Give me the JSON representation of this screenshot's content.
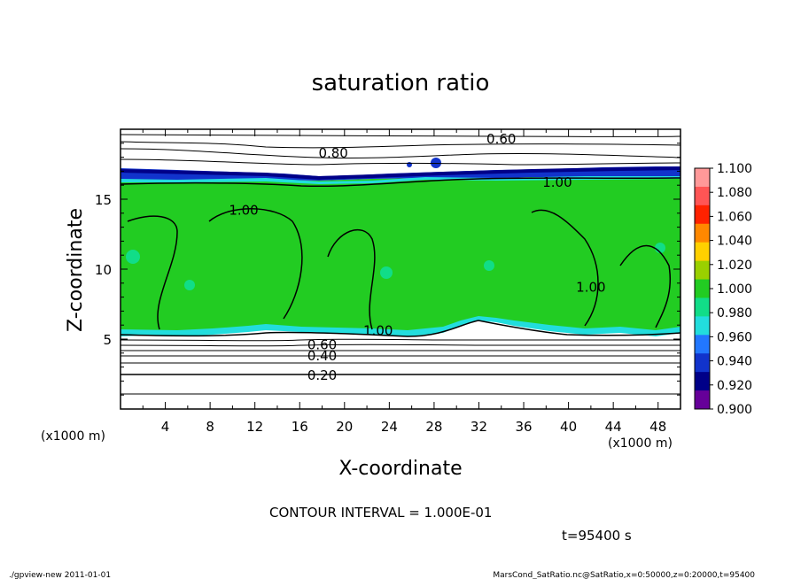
{
  "chart_data": {
    "type": "heatmap",
    "title": "saturation ratio",
    "xlabel": "X-coordinate",
    "ylabel": "Z-coordinate",
    "x_unit": "(x1000 m)",
    "y_unit": "(x1000 m)",
    "xlim": [
      0,
      50
    ],
    "ylim": [
      0,
      20
    ],
    "x_ticks": [
      4,
      8,
      12,
      16,
      20,
      24,
      28,
      32,
      36,
      40,
      44,
      48
    ],
    "y_ticks": [
      5,
      10,
      15
    ],
    "contour_interval_text": "CONTOUR INTERVAL = 1.000E-01",
    "time_text": "t=95400 s",
    "contour_labels": [
      {
        "text": "0.60",
        "x": 34,
        "z": 19.3
      },
      {
        "text": "0.80",
        "x": 19,
        "z": 18.3
      },
      {
        "text": "1.00",
        "x": 39,
        "z": 16.2
      },
      {
        "text": "1.00",
        "x": 11,
        "z": 14.2
      },
      {
        "text": "1.00",
        "x": 23,
        "z": 5.6
      },
      {
        "text": "1.00",
        "x": 42,
        "z": 8.7
      },
      {
        "text": "0.60",
        "x": 18,
        "z": 4.6
      },
      {
        "text": "0.40",
        "x": 18,
        "z": 3.8
      },
      {
        "text": "0.20",
        "x": 18,
        "z": 2.4
      }
    ],
    "colorbar": {
      "levels": [
        "1.100",
        "1.080",
        "1.060",
        "1.040",
        "1.020",
        "1.000",
        "0.980",
        "0.960",
        "0.940",
        "0.920",
        "0.900"
      ],
      "colors": [
        "#ff9999",
        "#ff5555",
        "#ff2200",
        "#ff8800",
        "#ffd000",
        "#9ad000",
        "#22cc22",
        "#11dd88",
        "#22dddd",
        "#2277ff",
        "#1133cc",
        "#000088",
        "#660099"
      ]
    },
    "footer_left": "./gpview-new  2011-01-01",
    "footer_right": "MarsCond_SatRatio.nc@SatRatio,x=0:50000,z=0:20000,t=95400"
  }
}
